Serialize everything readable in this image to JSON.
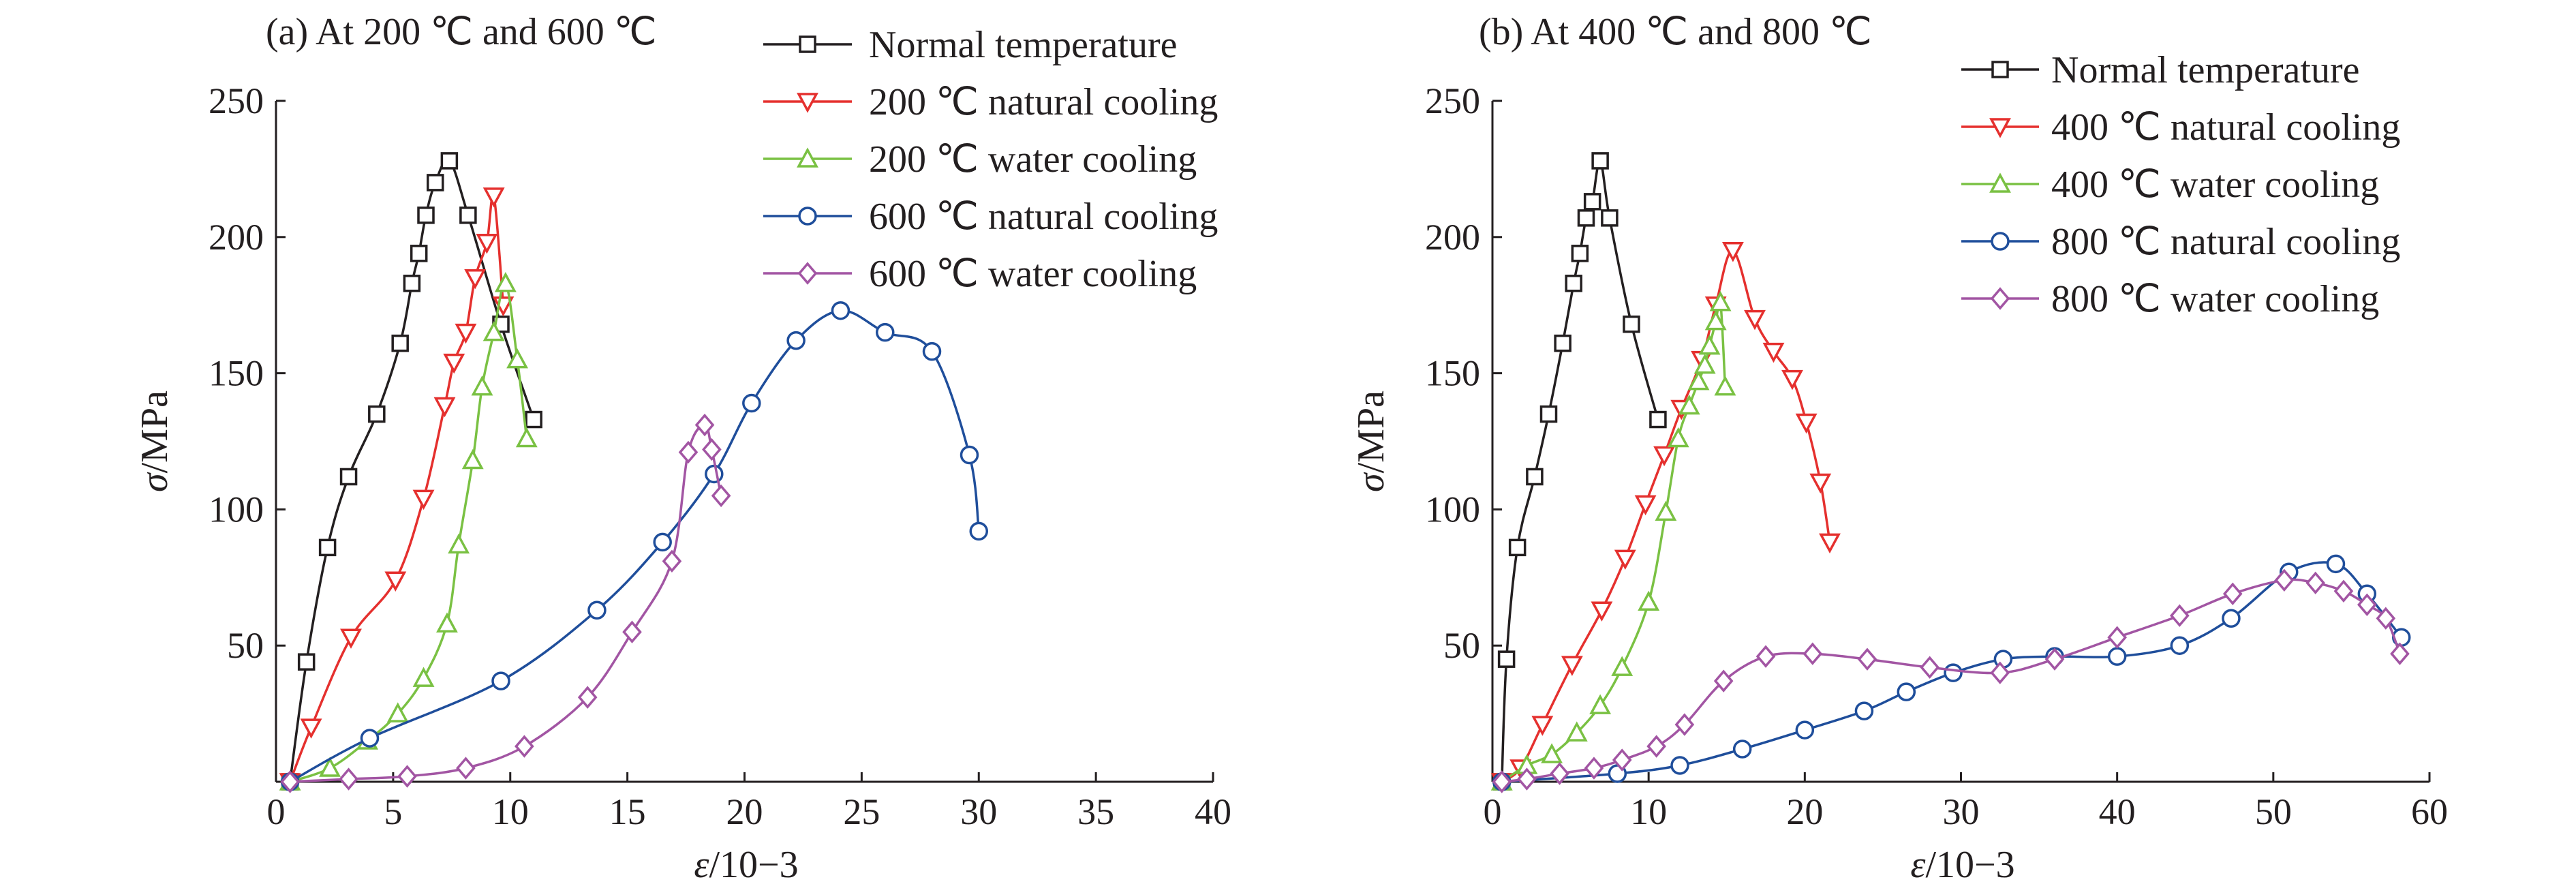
{
  "chart_data": [
    {
      "type": "line",
      "title": "(a) At 200 ℃ and 600 ℃",
      "xlabel_symbol": "ε",
      "xlabel_unit": "/10−3",
      "ylabel_symbol": "σ",
      "ylabel_unit": "/MPa",
      "xlim": [
        0,
        40
      ],
      "ylim": [
        0,
        250
      ],
      "xticks": [
        "0",
        "5",
        "10",
        "15",
        "20",
        "25",
        "30",
        "35",
        "40"
      ],
      "yticks": [
        "50",
        "100",
        "150",
        "200",
        "250"
      ],
      "grid": false,
      "legend_position": "top-right",
      "series": [
        {
          "name": "Normal temperature",
          "color": "#231f20",
          "marker": "square",
          "x": [
            0.6,
            1.3,
            2.2,
            3.1,
            4.3,
            5.3,
            5.8,
            6.1,
            6.4,
            6.8,
            7.4,
            8.2,
            9.6,
            11.0
          ],
          "y": [
            0,
            44,
            86,
            112,
            135,
            161,
            183,
            194,
            208,
            220,
            228,
            208,
            168,
            133
          ]
        },
        {
          "name": "200 ℃ natural cooling",
          "color": "#e5302e",
          "marker": "triangle-down",
          "x": [
            0.6,
            1.5,
            3.2,
            5.1,
            6.3,
            7.2,
            7.6,
            8.1,
            8.5,
            9.0,
            9.3,
            9.7
          ],
          "y": [
            0,
            20,
            53,
            74,
            104,
            138,
            154,
            165,
            185,
            198,
            215,
            175
          ]
        },
        {
          "name": "200 ℃ water cooling",
          "color": "#7ac143",
          "marker": "triangle-up",
          "x": [
            0.6,
            2.3,
            3.9,
            5.2,
            6.3,
            7.3,
            7.8,
            8.4,
            8.8,
            9.3,
            9.8,
            10.3,
            10.7
          ],
          "y": [
            0,
            5,
            15,
            25,
            38,
            58,
            87,
            118,
            145,
            165,
            183,
            155,
            126
          ]
        },
        {
          "name": "600 ℃ natural cooling",
          "color": "#1f4e9b",
          "marker": "circle",
          "x": [
            0.6,
            4.0,
            9.6,
            13.7,
            16.5,
            18.7,
            20.3,
            22.2,
            24.1,
            26.0,
            28.0,
            29.6,
            30.0
          ],
          "y": [
            0,
            16,
            37,
            63,
            88,
            113,
            139,
            162,
            173,
            165,
            158,
            120,
            92
          ]
        },
        {
          "name": "600 ℃ water cooling",
          "color": "#a255a3",
          "marker": "diamond",
          "x": [
            0.6,
            3.1,
            5.6,
            8.1,
            10.6,
            13.3,
            15.2,
            16.9,
            17.6,
            18.3,
            18.6,
            19.0
          ],
          "y": [
            0,
            1,
            2,
            5,
            13,
            31,
            55,
            81,
            121,
            131,
            122,
            105
          ]
        }
      ]
    },
    {
      "type": "line",
      "title": "(b) At 400 ℃ and 800 ℃",
      "xlabel_symbol": "ε",
      "xlabel_unit": "/10−3",
      "ylabel_symbol": "σ",
      "ylabel_unit": "/MPa",
      "xlim": [
        0,
        60
      ],
      "ylim": [
        0,
        250
      ],
      "xticks": [
        "0",
        "10",
        "20",
        "30",
        "40",
        "50",
        "60"
      ],
      "yticks": [
        "50",
        "100",
        "150",
        "200",
        "250"
      ],
      "grid": false,
      "legend_position": "top-right",
      "series": [
        {
          "name": "Normal temperature",
          "color": "#231f20",
          "marker": "square",
          "x": [
            0.6,
            0.9,
            1.6,
            2.7,
            3.6,
            4.5,
            5.2,
            5.6,
            6.0,
            6.4,
            6.9,
            7.5,
            8.9,
            10.6
          ],
          "y": [
            0,
            45,
            86,
            112,
            135,
            161,
            183,
            194,
            207,
            213,
            228,
            207,
            168,
            133
          ]
        },
        {
          "name": "400 ℃ natural cooling",
          "color": "#e5302e",
          "marker": "triangle-down",
          "x": [
            0.6,
            1.8,
            3.2,
            5.1,
            7.0,
            8.5,
            9.8,
            11.0,
            12.1,
            13.4,
            14.3,
            15.4,
            16.8,
            18.0,
            19.2,
            20.1,
            21.0,
            21.6
          ],
          "y": [
            0,
            5,
            21,
            43,
            63,
            82,
            102,
            120,
            137,
            155,
            175,
            195,
            170,
            158,
            148,
            132,
            110,
            88
          ]
        },
        {
          "name": "400 ℃ water cooling",
          "color": "#7ac143",
          "marker": "triangle-up",
          "x": [
            0.6,
            2.2,
            3.8,
            5.4,
            6.9,
            8.3,
            10.0,
            11.1,
            11.9,
            12.6,
            13.2,
            13.6,
            13.9,
            14.3,
            14.6,
            14.9
          ],
          "y": [
            0,
            6,
            10,
            18,
            28,
            42,
            66,
            99,
            126,
            138,
            147,
            153,
            160,
            169,
            176,
            145
          ]
        },
        {
          "name": "800 ℃ natural cooling",
          "color": "#1f4e9b",
          "marker": "circle",
          "x": [
            0.6,
            8.0,
            12.0,
            16.0,
            20.0,
            23.8,
            26.5,
            29.5,
            32.7,
            36.0,
            40.0,
            44.0,
            47.3,
            51.0,
            54.0,
            56.0,
            58.2
          ],
          "y": [
            0,
            3,
            6,
            12,
            19,
            26,
            33,
            40,
            45,
            46,
            46,
            50,
            60,
            77,
            80,
            69,
            53
          ]
        },
        {
          "name": "800 ℃ water cooling",
          "color": "#a255a3",
          "marker": "diamond",
          "x": [
            0.6,
            2.2,
            4.3,
            6.5,
            8.3,
            10.5,
            12.3,
            14.8,
            17.5,
            20.5,
            24.0,
            28.0,
            32.5,
            36.0,
            40.0,
            44.0,
            47.4,
            50.7,
            52.7,
            54.5,
            56.0,
            57.2,
            58.1
          ],
          "y": [
            0,
            1,
            3,
            5,
            8,
            13,
            21,
            37,
            46,
            47,
            45,
            42,
            40,
            45,
            53,
            61,
            69,
            74,
            73,
            70,
            65,
            60,
            47
          ]
        }
      ]
    }
  ]
}
